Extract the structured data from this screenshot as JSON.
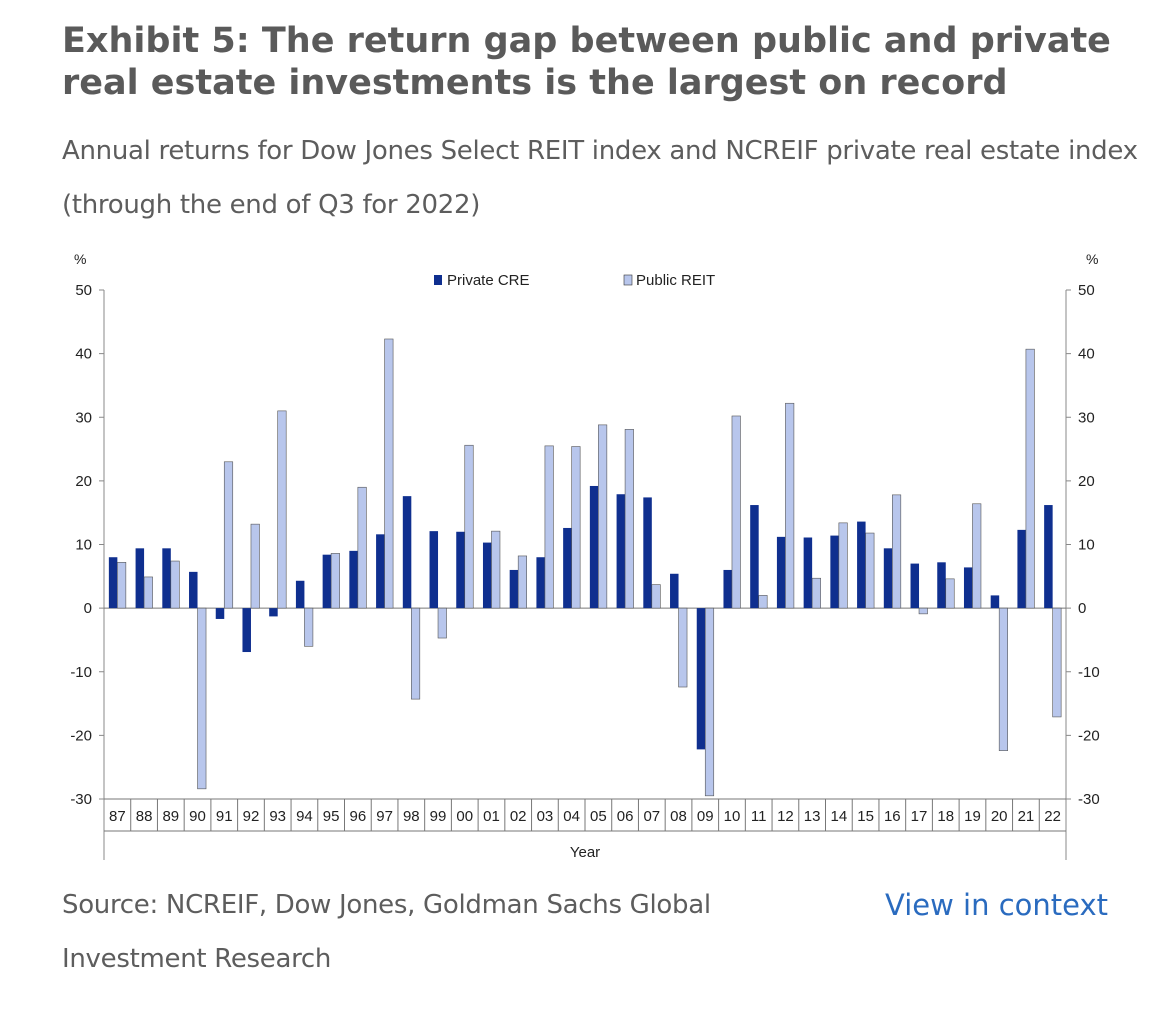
{
  "header": {
    "title": "Exhibit 5: The return gap between public and private real estate investments is the largest on record",
    "subtitle": "Annual returns for Dow Jones Select REIT index and NCREIF private real estate index (through the end of Q3 for 2022)"
  },
  "footer": {
    "source": "Source: NCREIF, Dow Jones, Goldman Sachs Global Investment Research",
    "link": "View in context"
  },
  "colors": {
    "private": "#0f2f8f",
    "public": "#b8c6ec",
    "text": "#5a5a5a",
    "link": "#2a6bbf"
  },
  "chart_data": {
    "type": "bar",
    "xlabel": "Year",
    "ylabel_left": "%",
    "ylabel_right": "%",
    "ylim": [
      -30,
      50
    ],
    "yticks": [
      -30,
      -20,
      -10,
      0,
      10,
      20,
      30,
      40,
      50
    ],
    "grid": false,
    "legend": "top-center",
    "categories": [
      "87",
      "88",
      "89",
      "90",
      "91",
      "92",
      "93",
      "94",
      "95",
      "96",
      "97",
      "98",
      "99",
      "00",
      "01",
      "02",
      "03",
      "04",
      "05",
      "06",
      "07",
      "08",
      "09",
      "10",
      "11",
      "12",
      "13",
      "14",
      "15",
      "16",
      "17",
      "18",
      "19",
      "20",
      "21",
      "22"
    ],
    "series": [
      {
        "name": "Private CRE",
        "values": [
          8,
          9.4,
          9.4,
          5.7,
          -1.7,
          -6.9,
          -1.3,
          4.3,
          8.4,
          9,
          11.6,
          17.6,
          12.1,
          12,
          10.3,
          6,
          8,
          12.6,
          19.2,
          17.9,
          17.4,
          5.4,
          -22.2,
          6,
          16.2,
          11.2,
          11.1,
          11.4,
          13.6,
          9.4,
          7,
          7.2,
          6.4,
          2,
          12.3,
          16.2
        ]
      },
      {
        "name": "Public REIT",
        "values": [
          7.2,
          4.9,
          7.4,
          -28.4,
          23,
          13.2,
          31,
          -6,
          8.6,
          19,
          42.3,
          -14.3,
          -4.7,
          25.6,
          12.1,
          8.2,
          25.5,
          25.4,
          28.8,
          28.1,
          3.7,
          -12.4,
          -29.5,
          30.2,
          2,
          32.2,
          4.7,
          13.4,
          11.8,
          17.8,
          -0.9,
          4.6,
          16.4,
          -22.4,
          40.7,
          -17.1
        ]
      }
    ]
  }
}
